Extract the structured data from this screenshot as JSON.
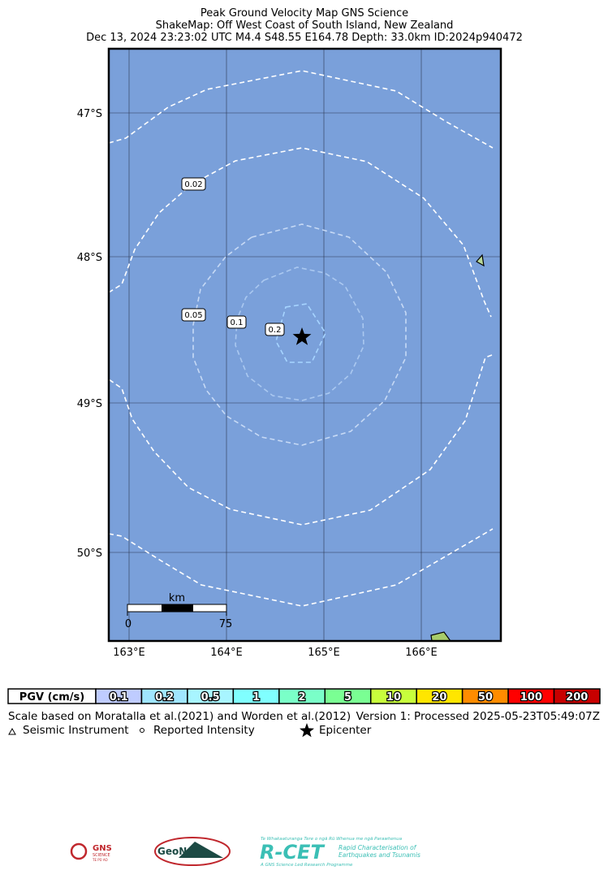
{
  "header": {
    "title_lines": [
      "Peak Ground Velocity Map GNS Science",
      "ShakeMap: Off West Coast of South Island, New Zealand",
      "Dec 13, 2024 23:23:02 UTC M4.4 S48.55 E164.78 Depth: 33.0km ID:2024p940472"
    ]
  },
  "map": {
    "lat_labels": [
      "47°S",
      "48°S",
      "49°S",
      "50°S"
    ],
    "lon_labels": [
      "163°E",
      "164°E",
      "165°E",
      "166°E"
    ],
    "contour_labels": [
      "0.02",
      "0.05",
      "0.1",
      "0.2"
    ],
    "scale_bar": {
      "unit": "km",
      "labels": [
        "0",
        "75"
      ]
    }
  },
  "legend": {
    "pgv_label": "PGV (cm/s)",
    "bins": [
      {
        "label": "0.1",
        "color": "#bfccff"
      },
      {
        "label": "0.2",
        "color": "#a0e6ff"
      },
      {
        "label": "0.5",
        "color": "#a8f5ff"
      },
      {
        "label": "1",
        "color": "#80ffff"
      },
      {
        "label": "2",
        "color": "#7affc8"
      },
      {
        "label": "5",
        "color": "#7aff93"
      },
      {
        "label": "10",
        "color": "#c8ff3c"
      },
      {
        "label": "20",
        "color": "#ffe600"
      },
      {
        "label": "50",
        "color": "#ff8c00"
      },
      {
        "label": "100",
        "color": "#ff0000"
      },
      {
        "label": "200",
        "color": "#c80000"
      }
    ]
  },
  "footer": {
    "scale_note": "Scale based on Moratalla et al.(2021) and Worden et al.(2012)",
    "version": "Version 1: Processed 2025-05-23T05:49:07Z",
    "symbols": [
      "Seismic Instrument",
      "Reported Intensity",
      "Epicenter"
    ]
  },
  "logos": {
    "gns": [
      "GNS",
      "SCIENCE",
      "TE PŪ AO"
    ],
    "geonet": "GeoNet",
    "rcet": {
      "name": "R-CET",
      "maori": "Te Whakaaturanga Tere o ngā Rū Whenua me ngā Parawhenua",
      "line1": "Rapid Characterisation of",
      "line2": "Earthquakes and Tsunamis",
      "tagline": "A GNS Science Led Research Programme"
    }
  }
}
